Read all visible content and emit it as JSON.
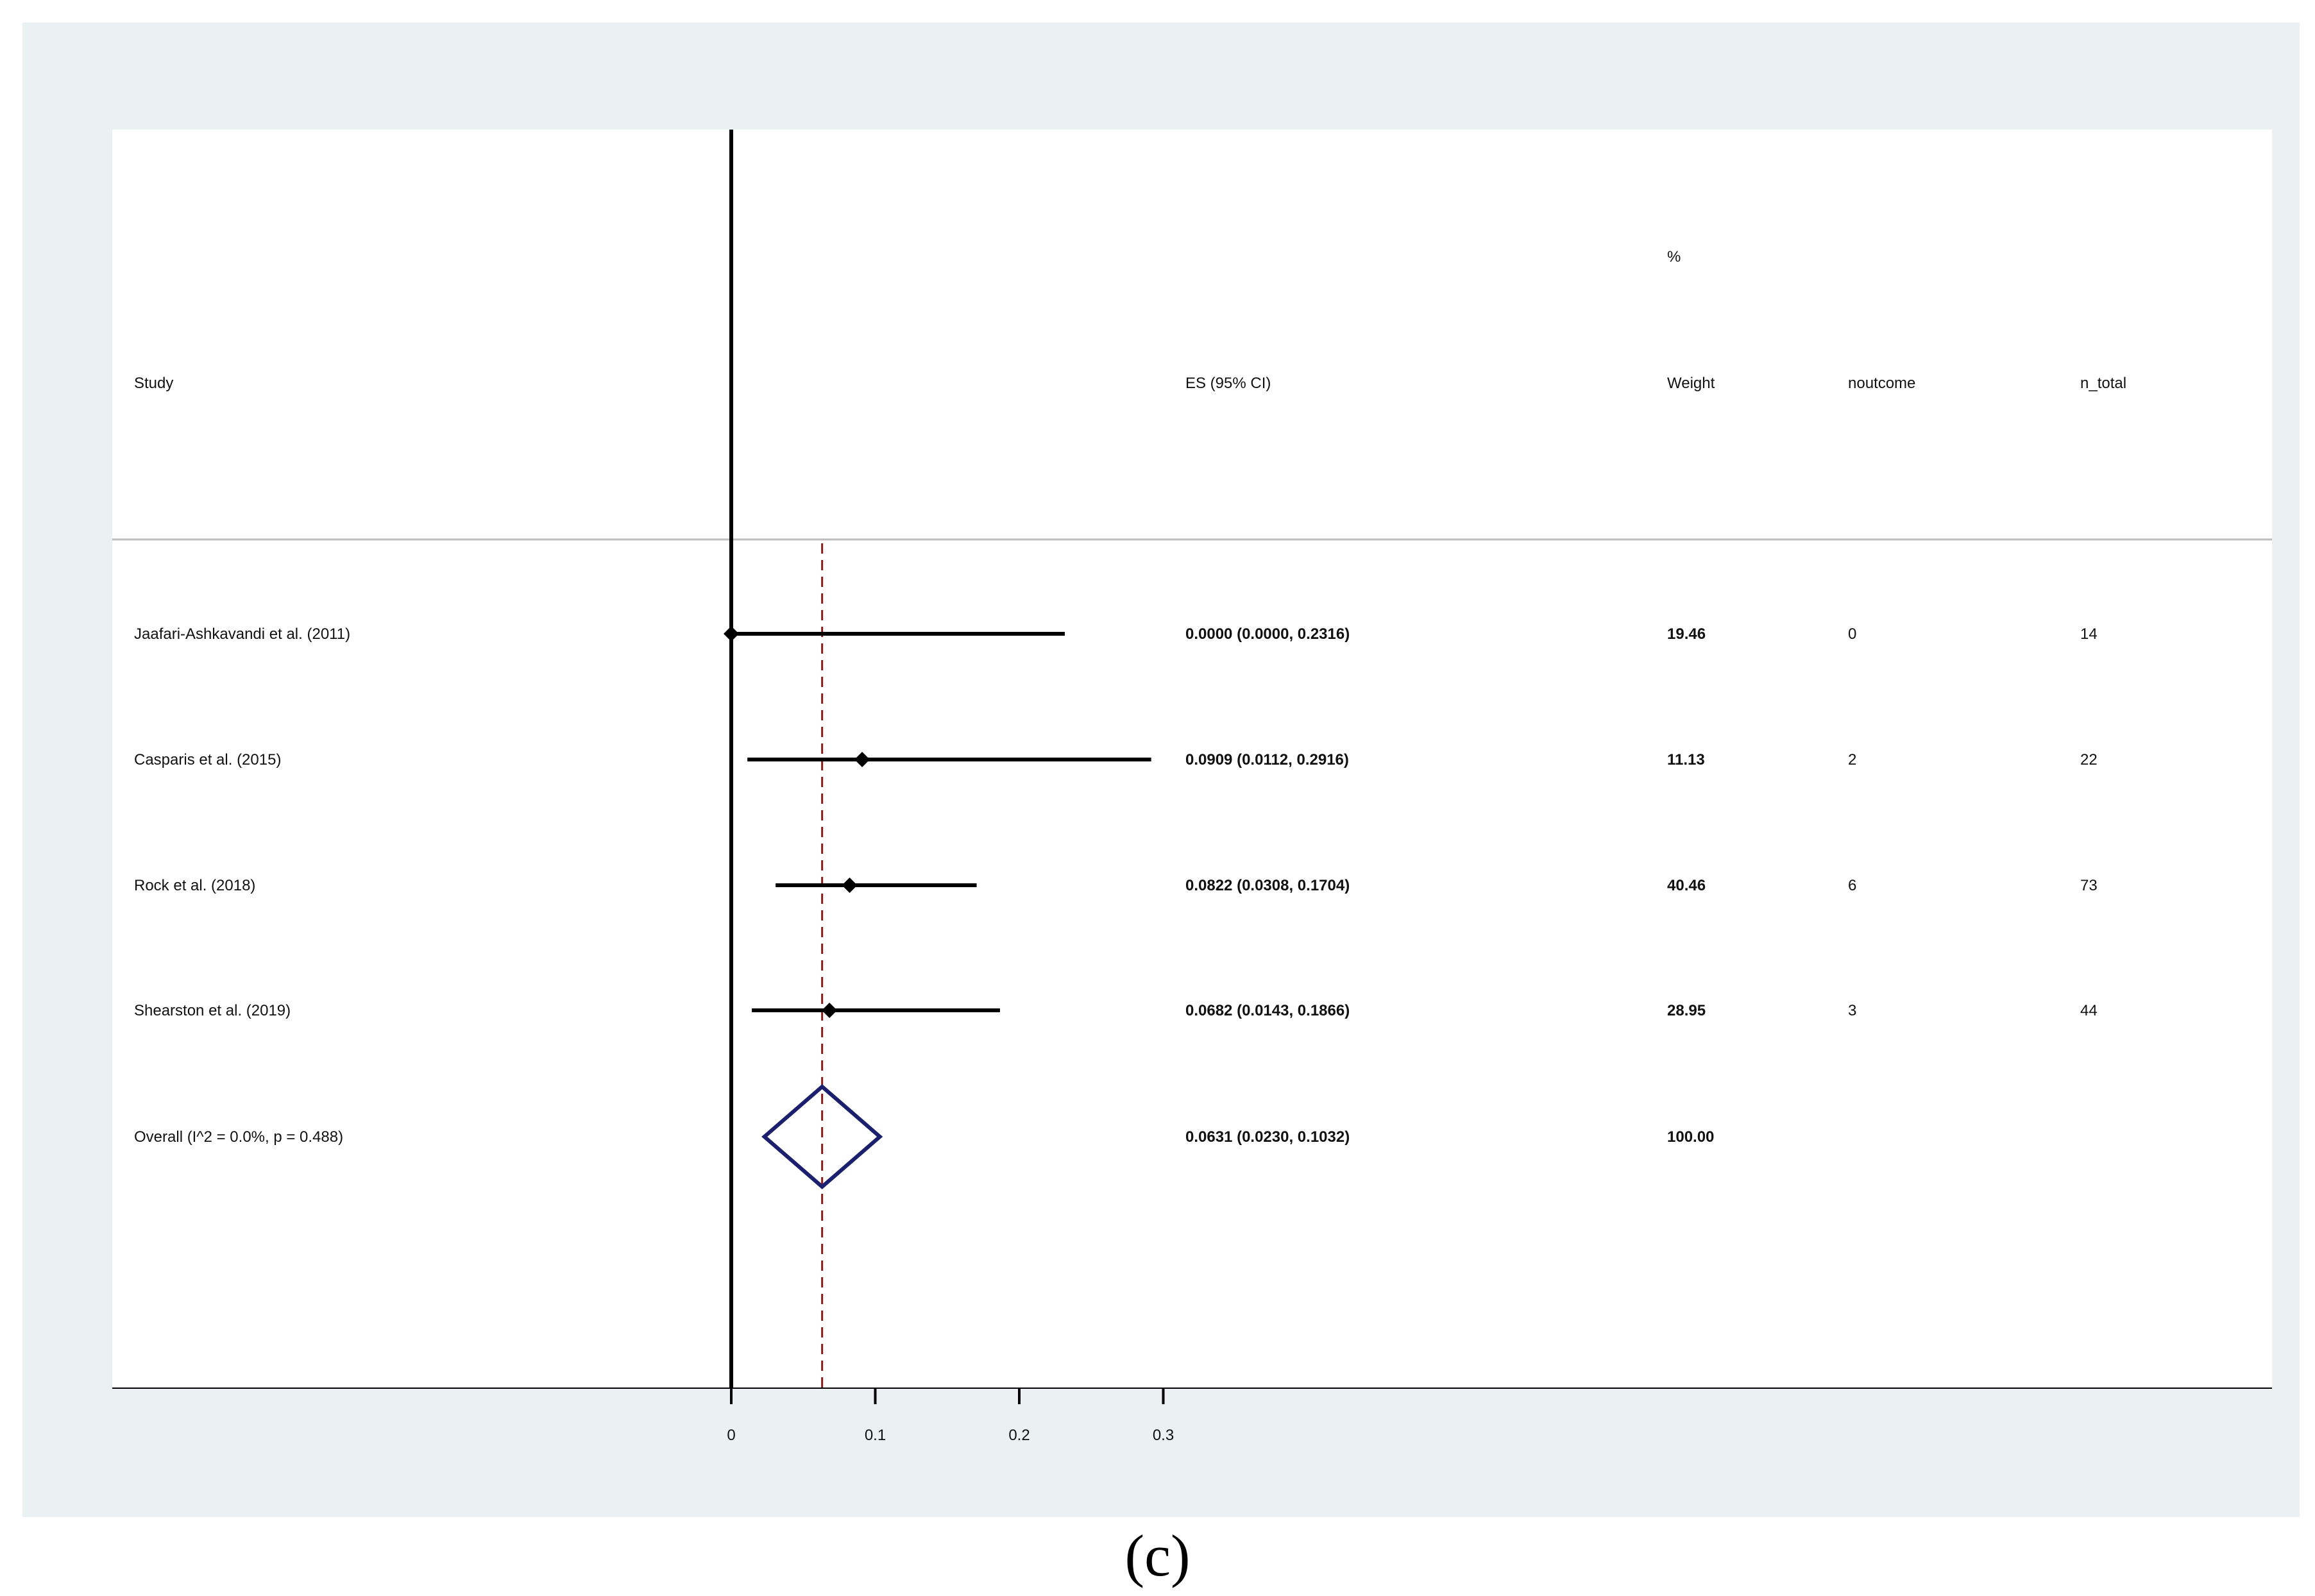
{
  "panel_label": "(c)",
  "headers": {
    "study": "Study",
    "es": "ES (95% CI)",
    "weight_top": "%",
    "weight": "Weight",
    "noutcome": "noutcome",
    "n_total": "n_total"
  },
  "colors": {
    "frame_background": "#ebf1f3",
    "panel_background": "#ffffff",
    "study_marker": "#000000",
    "overall_diamond": "#1a1f6e",
    "overall_reference_line": "#8b1a1a",
    "header_rule": "#bdbdbd"
  },
  "chart_data": {
    "type": "forest",
    "x_ticks": [
      0,
      0.1,
      0.2,
      0.3
    ],
    "x_tick_labels": [
      "0",
      "0.1",
      "0.2",
      "0.3"
    ],
    "null_line": 0,
    "overall_line": 0.0631,
    "studies": [
      {
        "label": "Jaafari-Ashkavandi et al. (2011)",
        "es": 0.0,
        "lo": 0.0,
        "hi": 0.2316,
        "es_text": "0.0000 (0.0000, 0.2316)",
        "weight": "19.46",
        "noutcome": "0",
        "n_total": "14"
      },
      {
        "label": "Casparis et al. (2015)",
        "es": 0.0909,
        "lo": 0.0112,
        "hi": 0.2916,
        "es_text": "0.0909 (0.0112, 0.2916)",
        "weight": "11.13",
        "noutcome": "2",
        "n_total": "22"
      },
      {
        "label": "Rock et al. (2018)",
        "es": 0.0822,
        "lo": 0.0308,
        "hi": 0.1704,
        "es_text": "0.0822 (0.0308, 0.1704)",
        "weight": "40.46",
        "noutcome": "6",
        "n_total": "73"
      },
      {
        "label": "Shearston et al. (2019)",
        "es": 0.0682,
        "lo": 0.0143,
        "hi": 0.1866,
        "es_text": "0.0682 (0.0143, 0.1866)",
        "weight": "28.95",
        "noutcome": "3",
        "n_total": "44"
      }
    ],
    "overall": {
      "label": "Overall  (I^2 = 0.0%, p = 0.488)",
      "es": 0.0631,
      "lo": 0.023,
      "hi": 0.1032,
      "es_text": "0.0631 (0.0230, 0.1032)",
      "weight": "100.00"
    }
  }
}
